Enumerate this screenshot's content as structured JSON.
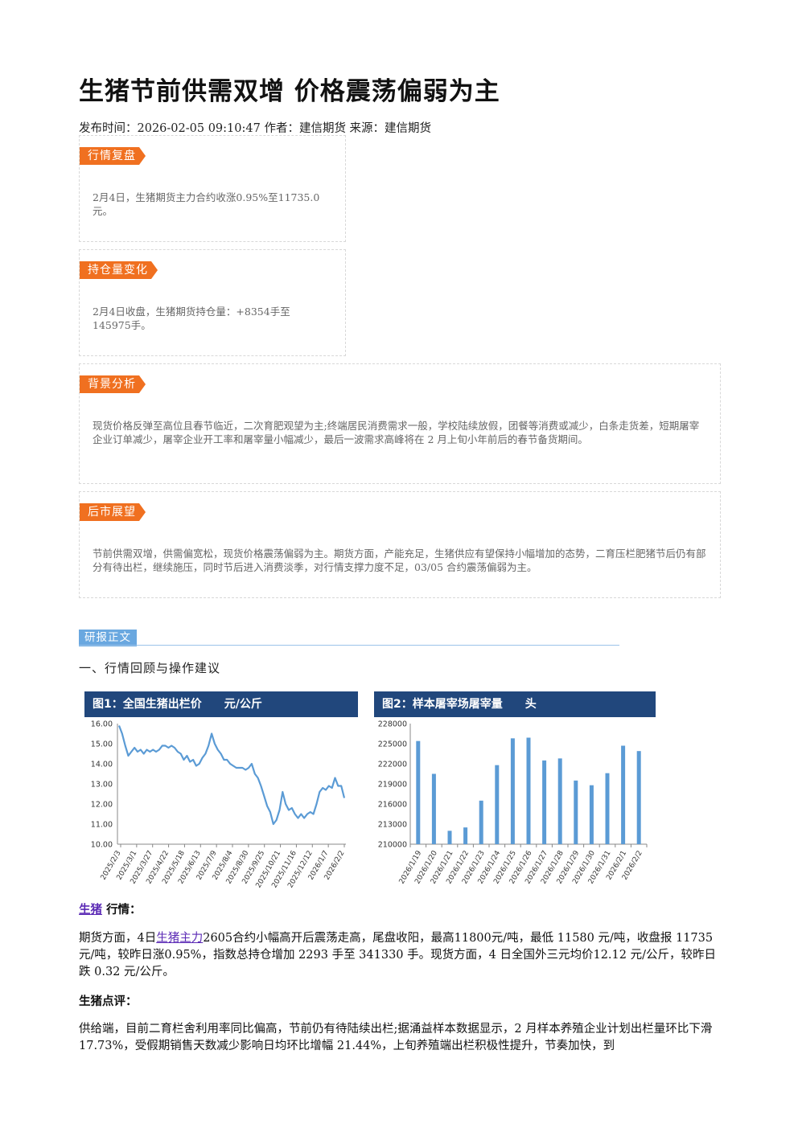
{
  "article": {
    "title": "生猪节前供需双增 价格震荡偏弱为主",
    "meta": "发布时间：2026-02-05 09:10:47 作者：建信期货 来源：建信期货"
  },
  "boxes": {
    "market_review": {
      "tag": "行情复盘",
      "text": "2月4日，生猪期货主力合约收涨0.95%至11735.0元。"
    },
    "open_interest": {
      "tag": "持仓量变化",
      "text": "2月4日收盘，生猪期货持仓量：+8354手至145975手。"
    },
    "background": {
      "tag": "背景分析",
      "text": "现货价格反弹至高位且春节临近，二次育肥观望为主;终端居民消费需求一般，学校陆续放假，团餐等消费或减少，白条走货差，短期屠宰企业订单减少，屠宰企业开工率和屠宰量小幅减少，最后一波需求高峰将在 2 月上旬小年前后的春节备货期间。"
    },
    "outlook": {
      "tag": "后市展望",
      "text": "节前供需双增，供需偏宽松，现货价格震荡偏弱为主。期货方面，产能充足，生猪供应有望保持小幅增加的态势，二育压栏肥猪节后仍有部分有待出栏，继续施压，同时节后进入消费淡季，对行情支撑力度不足，03/05 合约震荡偏弱为主。"
    }
  },
  "report": {
    "tag": "研报正文",
    "section1": "一、行情回顾与操作建议",
    "market_link": "生猪",
    "market_suffix": "行情：",
    "futures_prefix": "期货方面，4日",
    "futures_link": "生猪主力",
    "futures_rest": "2605合约小幅高开后震荡走高，尾盘收阳，最高11800元/吨，最低 11580 元/吨，收盘报 11735 元/吨，较昨日涨0.95%，指数总持仓增加 2293 手至 341330 手。现货方面，4 日全国外三元均价12.12 元/公斤，较昨日跌 0.32 元/公斤。",
    "comment_title": "生猪点评：",
    "comment_text": "供给端，目前二育栏舍利用率同比偏高，节前仍有待陆续出栏;据涌益样本数据显示，2 月样本养殖企业计划出栏量环比下滑17.73%，受假期销售天数减少影响日均环比增幅 21.44%，上旬养殖端出栏积极性提升，节奏加快，到"
  },
  "chart_data": [
    {
      "type": "line",
      "title": "图1：全国生猪出栏价　　元/公斤",
      "x_ticks": [
        "2025/2/3",
        "2025/3/1",
        "2025/3/27",
        "2025/4/22",
        "2025/5/18",
        "2025/6/13",
        "2025/7/9",
        "2025/8/4",
        "2025/8/30",
        "2025/9/25",
        "2025/10/21",
        "2025/11/16",
        "2025/12/12",
        "2026/1/7",
        "2026/2/2"
      ],
      "ylim": [
        10,
        16
      ],
      "y_ticks": [
        "10.00",
        "11.00",
        "12.00",
        "13.00",
        "14.00",
        "15.00",
        "16.00"
      ],
      "color": "#5b9bd5",
      "values": [
        15.9,
        15.5,
        14.9,
        14.4,
        14.6,
        14.8,
        14.6,
        14.7,
        14.5,
        14.7,
        14.6,
        14.7,
        14.6,
        14.7,
        14.9,
        14.9,
        14.8,
        14.9,
        14.8,
        14.6,
        14.5,
        14.2,
        14.4,
        14.1,
        14.2,
        13.9,
        14.0,
        14.3,
        14.5,
        14.9,
        15.5,
        15.0,
        14.7,
        14.5,
        14.2,
        14.2,
        14.0,
        13.9,
        13.8,
        13.8,
        13.8,
        13.7,
        13.8,
        14.0,
        13.5,
        13.3,
        12.9,
        12.4,
        11.9,
        11.6,
        11.0,
        11.2,
        11.7,
        12.6,
        12.0,
        11.7,
        11.8,
        11.5,
        11.3,
        11.5,
        11.3,
        11.5,
        11.6,
        11.5,
        12.0,
        12.6,
        12.8,
        12.7,
        12.9,
        12.8,
        13.3,
        12.9,
        12.9,
        12.3
      ]
    },
    {
      "type": "bar",
      "title": "图2：样本屠宰场屠宰量　　头",
      "categories": [
        "2026/1/19",
        "2026/1/20",
        "2026/1/21",
        "2026/1/22",
        "2026/1/23",
        "2026/1/24",
        "2026/1/25",
        "2026/1/26",
        "2026/1/27",
        "2026/1/28",
        "2026/1/29",
        "2026/1/30",
        "2026/1/31",
        "2026/2/1",
        "2026/2/2"
      ],
      "values": [
        225400,
        220500,
        212000,
        212500,
        216500,
        221800,
        225800,
        225900,
        222500,
        222800,
        219500,
        218800,
        220600,
        224700,
        223900
      ],
      "ylim": [
        210000,
        228000
      ],
      "y_ticks": [
        "210000",
        "213000",
        "216000",
        "219000",
        "222000",
        "225000",
        "228000"
      ],
      "color": "#5b9bd5"
    }
  ]
}
